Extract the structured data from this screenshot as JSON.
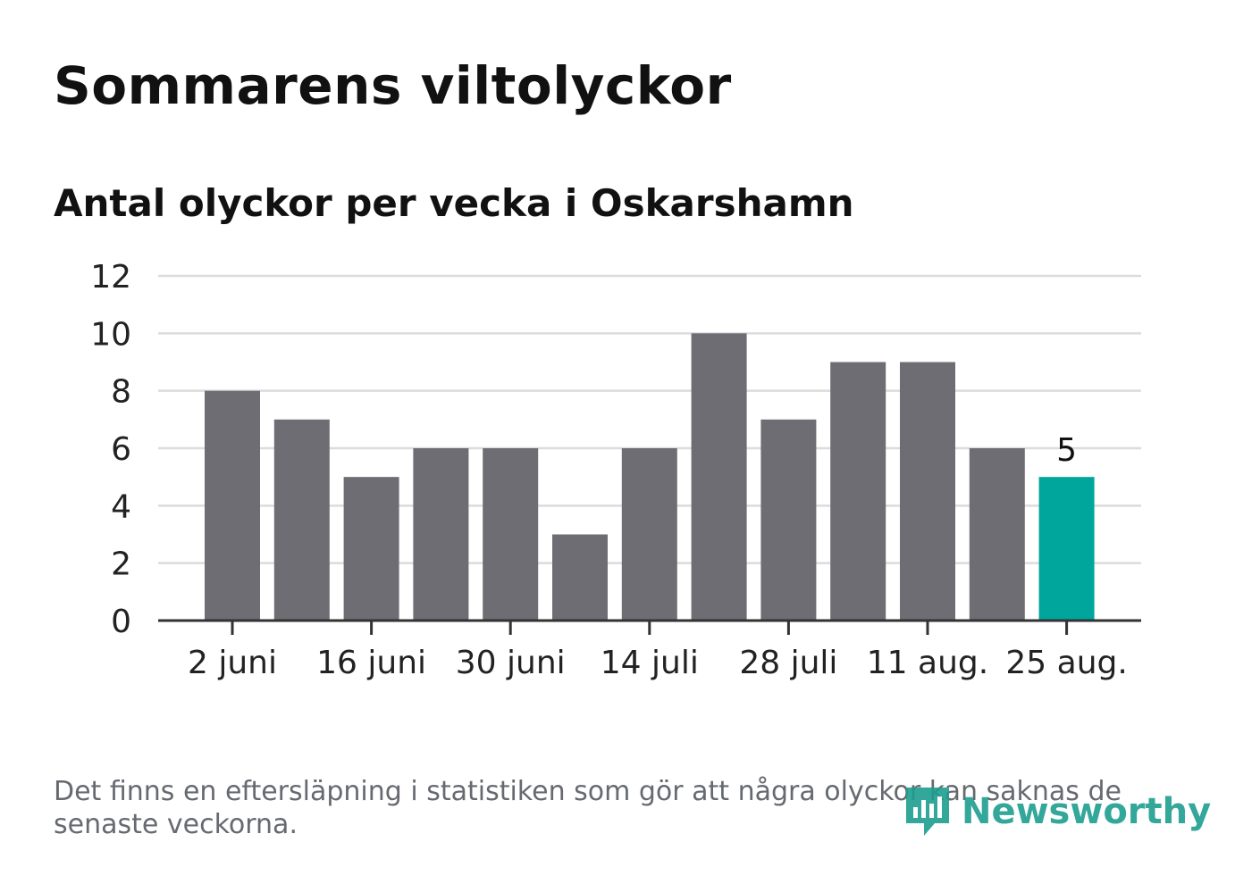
{
  "title": "Sommarens viltolyckor",
  "subtitle": "Antal olyckor per vecka i Oskarshamn",
  "footnote": "Det finns en eftersläpning i statistiken som gör att några olyckor kan saknas de senaste veckorna.",
  "logo": {
    "text": "Newsworthy",
    "icon": "newsworthy-bar-chart-icon"
  },
  "colors": {
    "bar": "#6e6d73",
    "highlight": "#00a59b",
    "grid": "#dcdcdc",
    "axis": "#333333",
    "logo": "#1d9e8f"
  },
  "chart_data": {
    "type": "bar",
    "categories": [
      "2 juni",
      "9 juni",
      "16 juni",
      "23 juni",
      "30 juni",
      "7 juli",
      "14 juli",
      "21 juli",
      "28 juli",
      "4 aug.",
      "11 aug.",
      "18 aug.",
      "25 aug."
    ],
    "values": [
      8,
      7,
      5,
      6,
      6,
      3,
      6,
      10,
      7,
      9,
      9,
      6,
      5
    ],
    "x_tick_labels": [
      "2 juni",
      "16 juni",
      "30 juni",
      "14 juli",
      "28 juli",
      "11 aug.",
      "25 aug."
    ],
    "y_ticks": [
      0,
      2,
      4,
      6,
      8,
      10,
      12
    ],
    "ylim": [
      0,
      12
    ],
    "grid": true,
    "highlight_index": 12,
    "highlight_label": "5",
    "xlabel": "",
    "ylabel": ""
  }
}
